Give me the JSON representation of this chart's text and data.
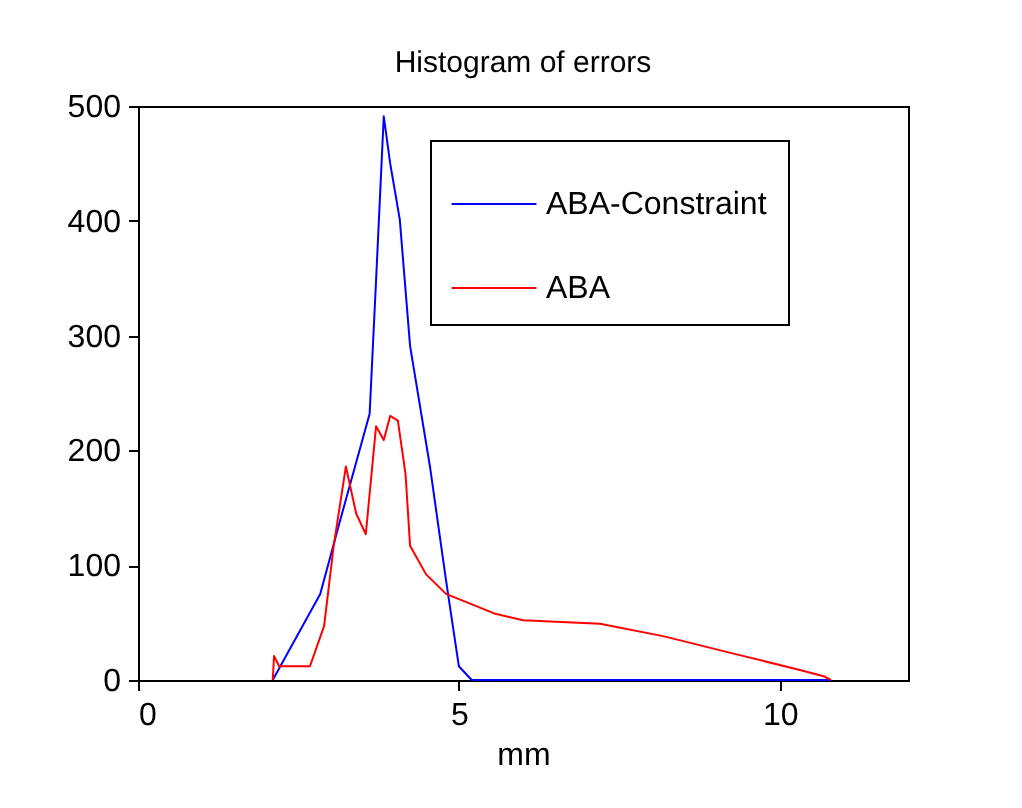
{
  "chart_data": {
    "type": "line",
    "title": "Histogram of errors",
    "xlabel": "mm",
    "xlim": [
      0,
      12
    ],
    "xticks": [
      0,
      5,
      10
    ],
    "ylim": [
      0,
      500
    ],
    "yticks": [
      0,
      100,
      200,
      300,
      400,
      500
    ],
    "grid": false,
    "legend": "top right",
    "line_style": "solid",
    "marker": "none",
    "series": [
      {
        "name": "ABA-Constraint",
        "color": "#0000ff",
        "x": [
          2.1,
          2.84,
          3.15,
          3.61,
          3.71,
          3.83,
          3.93,
          4.08,
          4.24,
          4.55,
          4.8,
          5.0,
          5.2,
          10.8
        ],
        "values": [
          0,
          75,
          139,
          232,
          348,
          491,
          450,
          401,
          291,
          186,
          87,
          12,
          0,
          0
        ]
      },
      {
        "name": "ABA",
        "color": "#ff0000",
        "x": [
          2.1,
          2.12,
          2.2,
          2.68,
          2.9,
          3.05,
          3.24,
          3.4,
          3.55,
          3.71,
          3.83,
          3.93,
          4.05,
          4.17,
          4.24,
          4.49,
          4.8,
          5.55,
          6.0,
          7.2,
          8.2,
          9.28,
          10.3,
          10.7,
          10.8
        ],
        "values": [
          0,
          21,
          12,
          12,
          47,
          117,
          186,
          145,
          127,
          221,
          209,
          230,
          226,
          179,
          117,
          92,
          75,
          58,
          52,
          49,
          38,
          23,
          9,
          3,
          0
        ]
      }
    ]
  }
}
